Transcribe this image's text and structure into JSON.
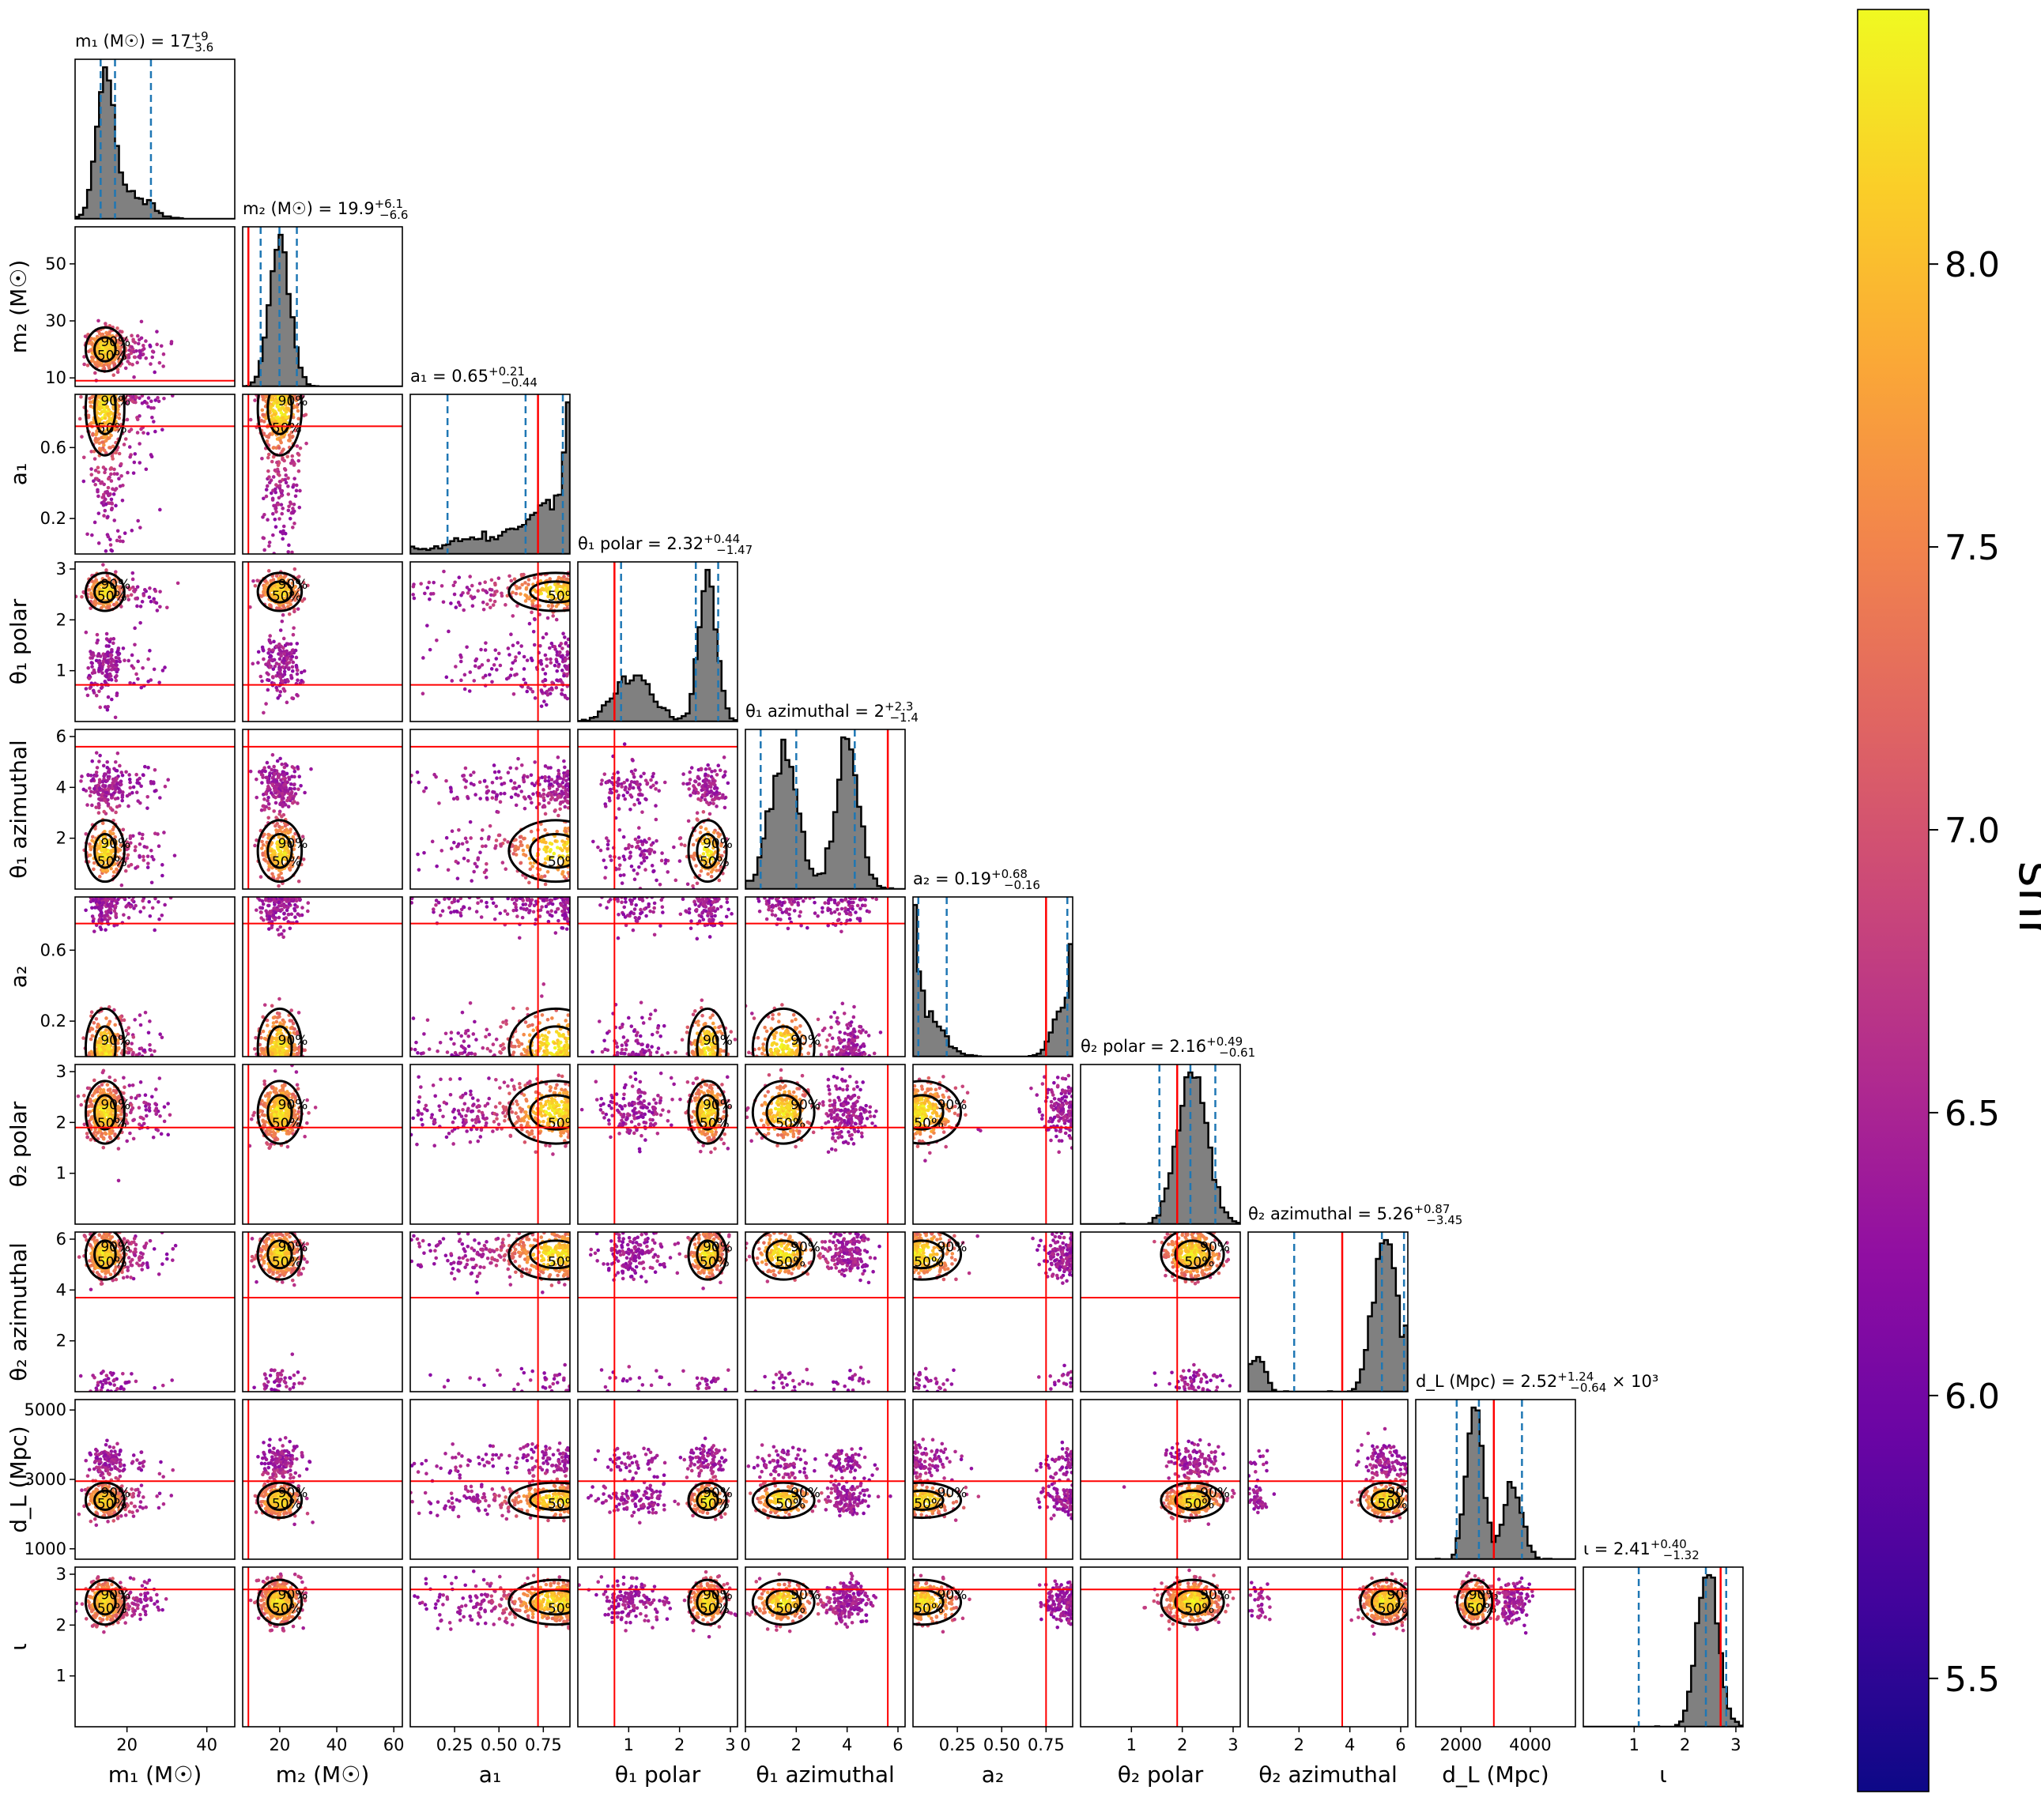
{
  "chart_data": {
    "type": "scatter",
    "layout": "corner",
    "params": [
      {
        "key": "m1",
        "label": "m₁ (M☉)",
        "title": "m₁ (M☉) = 17",
        "title_sup": "+9",
        "title_sub": "−3.6",
        "range": [
          7,
          47
        ],
        "ticks": [
          20,
          40
        ],
        "tick_labels": [
          "20",
          "40"
        ],
        "median": 17,
        "q_lo": 13.4,
        "q_hi": 26,
        "truth": null,
        "peaks": [
          [
            14.5,
            2.2
          ],
          [
            21,
            4.5
          ]
        ],
        "weights": [
          0.75,
          0.25
        ]
      },
      {
        "key": "m2",
        "label": "m₂ (M☉)",
        "title": "m₂ (M☉) = 19.9",
        "title_sup": "+6.1",
        "title_sub": "−6.6",
        "range": [
          7,
          63
        ],
        "ticks": [
          20,
          40,
          60
        ],
        "tick_labels": [
          "20",
          "40",
          "60"
        ],
        "median": 19.9,
        "q_lo": 13.3,
        "q_hi": 26,
        "truth": 9,
        "peaks": [
          [
            20,
            3.5
          ]
        ],
        "weights": [
          1
        ]
      },
      {
        "key": "a1",
        "label": "a₁",
        "title": "a₁ = 0.65",
        "title_sup": "+0.21",
        "title_sub": "−0.44",
        "range": [
          0.0,
          0.9
        ],
        "ticks": [
          0.25,
          0.5,
          0.75
        ],
        "tick_labels": [
          "0.25",
          "0.50",
          "0.75"
        ],
        "median": 0.65,
        "q_lo": 0.21,
        "q_hi": 0.86,
        "truth": 0.72,
        "peaks": [
          [
            0.82,
            0.12
          ],
          [
            0.45,
            0.22
          ]
        ],
        "weights": [
          0.6,
          0.4
        ]
      },
      {
        "key": "th1p",
        "label": "θ₁ polar",
        "title": "θ₁ polar = 2.32",
        "title_sup": "+0.44",
        "title_sub": "−1.47",
        "range": [
          0.0,
          3.14
        ],
        "ticks": [
          1,
          2,
          3
        ],
        "tick_labels": [
          "1",
          "2",
          "3"
        ],
        "median": 2.32,
        "q_lo": 0.85,
        "q_hi": 2.76,
        "truth": 0.72,
        "peaks": [
          [
            2.55,
            0.17
          ],
          [
            1.1,
            0.35
          ]
        ],
        "weights": [
          0.6,
          0.4
        ]
      },
      {
        "key": "th1a",
        "label": "θ₁ azimuthal",
        "title": "θ₁ azimuthal = 2",
        "title_sup": "+2.3",
        "title_sub": "−1.4",
        "range": [
          0.0,
          6.28
        ],
        "ticks": [
          0,
          2,
          4,
          6
        ],
        "tick_labels": [
          "0",
          "2",
          "4",
          "6"
        ],
        "median": 2,
        "q_lo": 0.6,
        "q_hi": 4.3,
        "truth": 5.6,
        "peaks": [
          [
            1.5,
            0.55
          ],
          [
            4.0,
            0.45
          ]
        ],
        "weights": [
          0.5,
          0.5
        ]
      },
      {
        "key": "a2",
        "label": "a₂",
        "title": "a₂ = 0.19",
        "title_sup": "+0.68",
        "title_sub": "−0.16",
        "range": [
          0.0,
          0.9
        ],
        "ticks": [
          0.25,
          0.5,
          0.75
        ],
        "tick_labels": [
          "0.25",
          "0.50",
          "0.75"
        ],
        "median": 0.19,
        "q_lo": 0.03,
        "q_hi": 0.87,
        "truth": 0.75,
        "peaks": [
          [
            0.05,
            0.1
          ],
          [
            0.85,
            0.06
          ]
        ],
        "weights": [
          0.6,
          0.4
        ]
      },
      {
        "key": "th2p",
        "label": "θ₂ polar",
        "title": "θ₂ polar = 2.16",
        "title_sup": "+0.49",
        "title_sub": "−0.61",
        "range": [
          0.0,
          3.14
        ],
        "ticks": [
          1,
          2,
          3
        ],
        "tick_labels": [
          "1",
          "2",
          "3"
        ],
        "median": 2.16,
        "q_lo": 1.55,
        "q_hi": 2.65,
        "truth": 1.9,
        "peaks": [
          [
            2.2,
            0.28
          ]
        ],
        "weights": [
          1
        ]
      },
      {
        "key": "th2a",
        "label": "θ₂ azimuthal",
        "title": "θ₂ azimuthal = 5.26",
        "title_sup": "+0.87",
        "title_sub": "−3.45",
        "range": [
          0.0,
          6.28
        ],
        "ticks": [
          2,
          4,
          6
        ],
        "tick_labels": [
          "2",
          "4",
          "6"
        ],
        "median": 5.26,
        "q_lo": 1.81,
        "q_hi": 6.13,
        "truth": 3.7,
        "peaks": [
          [
            5.4,
            0.45
          ],
          [
            0.4,
            0.25
          ]
        ],
        "weights": [
          0.88,
          0.12
        ]
      },
      {
        "key": "dl",
        "label": "d_L (Mpc)",
        "title": "d_L (Mpc) = 2.52",
        "title_sup": "+1.24",
        "title_sub": "−0.64",
        "title_suffix": " × 10³",
        "range": [
          700,
          5300
        ],
        "ticks": [
          2000,
          4000
        ],
        "tick_labels": [
          "2000",
          "4000"
        ],
        "median": 2520,
        "q_lo": 1880,
        "q_hi": 3760,
        "truth": 2950,
        "peaks": [
          [
            2400,
            230
          ],
          [
            3500,
            250
          ]
        ],
        "weights": [
          0.65,
          0.35
        ]
      },
      {
        "key": "iota",
        "label": "ι",
        "title": "ι = 2.41",
        "title_sup": "+0.40",
        "title_sub": "−1.32",
        "range": [
          0.0,
          3.14
        ],
        "ticks": [
          1,
          2,
          3
        ],
        "tick_labels": [
          "1",
          "2",
          "3"
        ],
        "median": 2.41,
        "q_lo": 1.09,
        "q_hi": 2.81,
        "truth": 2.7,
        "peaks": [
          [
            2.45,
            0.2
          ]
        ],
        "weights": [
          1
        ]
      }
    ],
    "y_ticks": {
      "m2": {
        "ticks": [
          10,
          30,
          50
        ],
        "tick_labels": [
          "10",
          "30",
          "50"
        ],
        "range": [
          7,
          63
        ]
      },
      "a1": {
        "ticks": [
          0.2,
          0.6
        ],
        "tick_labels": [
          "0.2",
          "0.6"
        ],
        "range": [
          0.0,
          0.9
        ]
      },
      "th1p": {
        "ticks": [
          1,
          2,
          3
        ],
        "tick_labels": [
          "1",
          "2",
          "3"
        ],
        "range": [
          0.0,
          3.14
        ]
      },
      "th1a": {
        "ticks": [
          2,
          4,
          6
        ],
        "tick_labels": [
          "2",
          "4",
          "6"
        ],
        "range": [
          0.0,
          6.28
        ]
      },
      "a2": {
        "ticks": [
          0.2,
          0.6
        ],
        "tick_labels": [
          "0.2",
          "0.6"
        ],
        "range": [
          0.0,
          0.9
        ]
      },
      "th2p": {
        "ticks": [
          1,
          2,
          3
        ],
        "tick_labels": [
          "1",
          "2",
          "3"
        ],
        "range": [
          0.0,
          3.14
        ]
      },
      "th2a": {
        "ticks": [
          2,
          4,
          6
        ],
        "tick_labels": [
          "2",
          "4",
          "6"
        ],
        "range": [
          0.0,
          6.28
        ]
      },
      "dl": {
        "ticks": [
          1000,
          3000,
          5000
        ],
        "tick_labels": [
          "1000",
          "3000",
          "5000"
        ],
        "range": [
          700,
          5300
        ]
      },
      "iota": {
        "ticks": [
          1,
          2,
          3
        ],
        "tick_labels": [
          "1",
          "2",
          "3"
        ],
        "range": [
          0.0,
          3.14
        ]
      }
    },
    "contour_levels": [
      "50%",
      "90%"
    ],
    "colorbar": {
      "label": "snr",
      "colormap": "plasma",
      "range": [
        5.3,
        8.45
      ],
      "ticks": [
        5.5,
        6.0,
        6.5,
        7.0,
        7.5,
        8.0
      ],
      "tick_labels": [
        "5.5",
        "6.0",
        "6.5",
        "7.0",
        "7.5",
        "8.0"
      ]
    },
    "colors": {
      "hist_fill": "#808080",
      "hist_edge": "#000000",
      "quantile_line": "#1f77b4",
      "truth_line": "#ff0000",
      "contour": "#000000"
    }
  }
}
